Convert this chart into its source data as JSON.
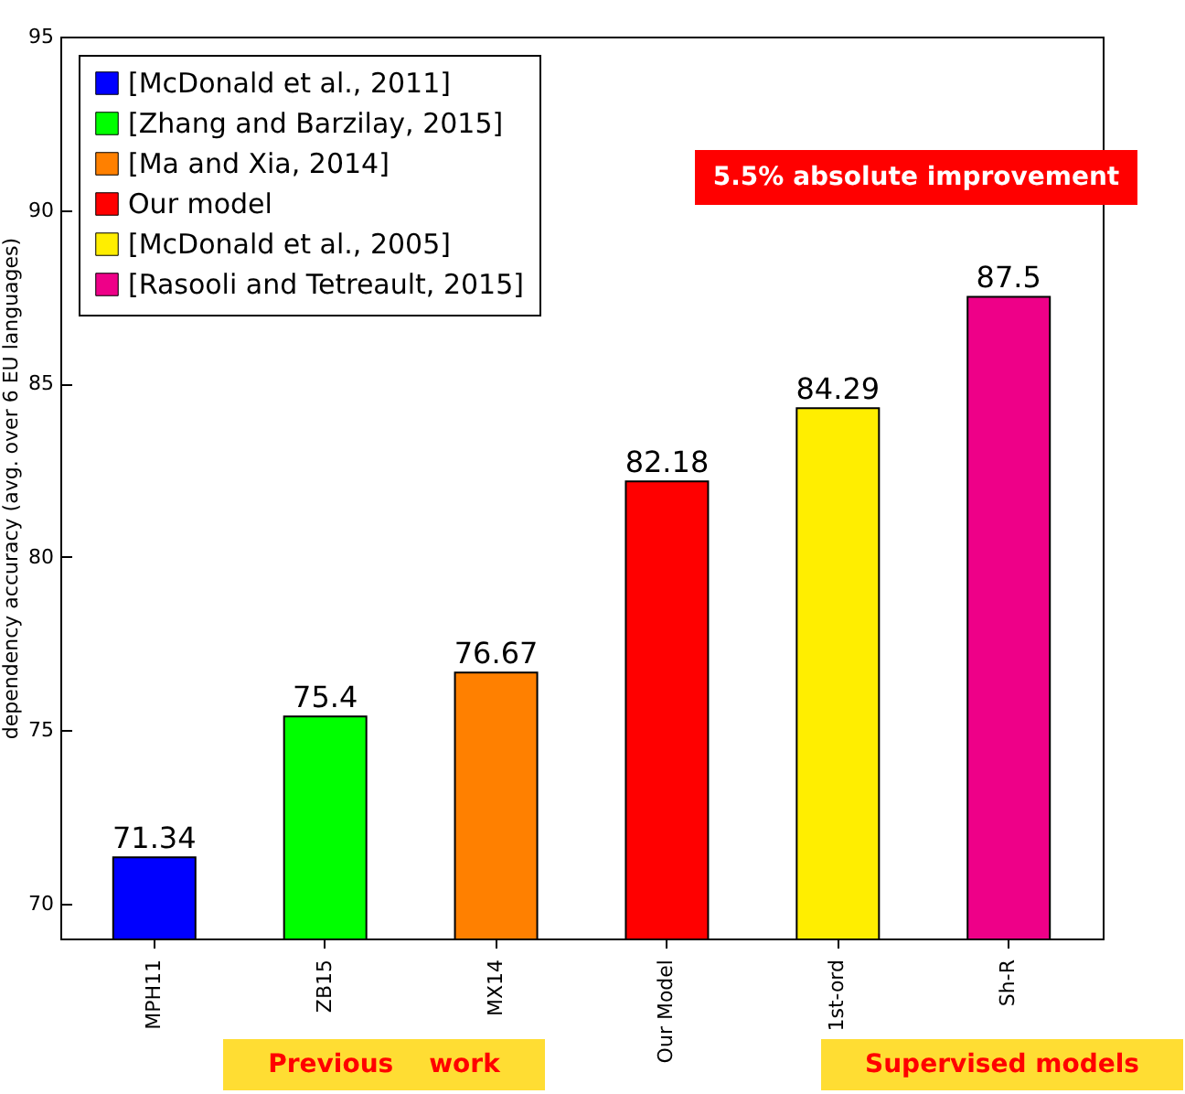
{
  "chart_data": {
    "type": "bar",
    "ylabel": "dependency accuracy (avg. over 6 EU languages)",
    "categories": [
      "MPH11",
      "ZB15",
      "MX14",
      "Our Model",
      "1st-ord",
      "Sh-R"
    ],
    "series": [
      {
        "name": "[McDonald et al., 2011]",
        "color": "#0000ff",
        "values": [
          71.34,
          null,
          null,
          null,
          null,
          null
        ]
      },
      {
        "name": "[Zhang and Barzilay, 2015]",
        "color": "#00ff00",
        "values": [
          null,
          75.4,
          null,
          null,
          null,
          null
        ]
      },
      {
        "name": "[Ma and Xia, 2014]",
        "color": "#ff8000",
        "values": [
          null,
          null,
          76.67,
          null,
          null,
          null
        ]
      },
      {
        "name": "Our model",
        "color": "#ff0000",
        "values": [
          null,
          null,
          null,
          82.18,
          null,
          null
        ]
      },
      {
        "name": "[McDonald et al., 2005]",
        "color": "#ffee00",
        "values": [
          null,
          null,
          null,
          null,
          84.29,
          null
        ]
      },
      {
        "name": "[Rasooli and Tetreault, 2015]",
        "color": "#ee0088",
        "values": [
          null,
          null,
          null,
          null,
          null,
          87.5
        ]
      }
    ],
    "ylim": [
      69,
      95
    ],
    "yticks": [
      70,
      75,
      80,
      85,
      90,
      95
    ],
    "data_labels": true,
    "legend": "top left",
    "grid": false,
    "annotations": [
      "5.5% absolute improvement",
      "Previous    work",
      "Supervised models"
    ]
  }
}
